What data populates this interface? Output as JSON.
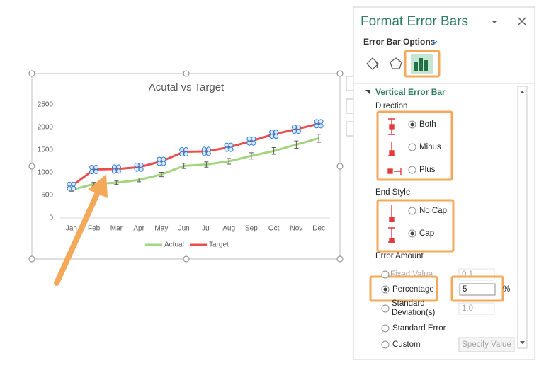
{
  "chart_data": {
    "type": "line",
    "title": "Acutal vs Target",
    "categories": [
      "Jan",
      "Feb",
      "Mar",
      "Apr",
      "May",
      "Jun",
      "Jul",
      "Aug",
      "Sep",
      "Oct",
      "Nov",
      "Dec"
    ],
    "series": [
      {
        "name": "Actual",
        "color": "#a3d47f",
        "values": [
          620,
          750,
          780,
          840,
          960,
          1150,
          1180,
          1250,
          1370,
          1480,
          1620,
          1760
        ]
      },
      {
        "name": "Target",
        "color": "#ea4e4e",
        "values": [
          700,
          1070,
          1080,
          1120,
          1250,
          1460,
          1470,
          1560,
          1700,
          1850,
          1960,
          2080
        ]
      }
    ],
    "ylim": [
      0,
      2500
    ],
    "yticks": [
      0,
      500,
      1000,
      1500,
      2000,
      2500
    ],
    "legend": "bottom"
  },
  "pane": {
    "title": "Format Error Bars",
    "section": "Error Bar Options",
    "group": "Vertical Error Bar",
    "direction": {
      "label": "Direction",
      "options": [
        {
          "label": "Both",
          "checked": true
        },
        {
          "label": "Minus",
          "checked": false
        },
        {
          "label": "Plus",
          "checked": false
        }
      ]
    },
    "end_style": {
      "label": "End Style",
      "options": [
        {
          "label": "No Cap",
          "checked": false
        },
        {
          "label": "Cap",
          "checked": true
        }
      ]
    },
    "error_amount": {
      "label": "Error Amount",
      "fixed_value": {
        "label": "Fixed Value",
        "value": 0.1,
        "checked": false
      },
      "percentage": {
        "label": "Percentage",
        "value": 5,
        "unit": "%",
        "checked": true
      },
      "standard_deviation": {
        "label": "Standard Deviation(s)",
        "value": "1.0",
        "checked": false
      },
      "standard_error": {
        "label": "Standard Error",
        "checked": false
      },
      "custom": {
        "label": "Custom",
        "button": "Specify Value",
        "checked": false
      }
    }
  }
}
